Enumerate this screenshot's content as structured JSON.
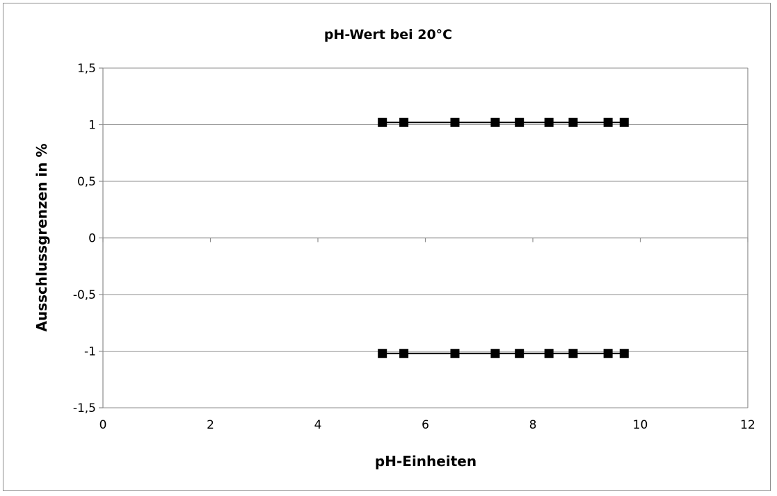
{
  "chart_data": {
    "type": "line",
    "title": "pH-Wert bei 20°C",
    "xlabel": "pH-Einheiten",
    "ylabel": "Ausschlussgrenzen in %",
    "xlim": [
      0,
      12
    ],
    "ylim": [
      -1.5,
      1.5
    ],
    "x_ticks": [
      0,
      2,
      4,
      6,
      8,
      10,
      12
    ],
    "y_ticks": [
      1.5,
      1,
      0.5,
      0,
      -0.5,
      -1,
      -1.5
    ],
    "x_tick_labels": [
      "0",
      "2",
      "4",
      "6",
      "8",
      "10",
      "12"
    ],
    "y_tick_labels": [
      "1,5",
      "1",
      "0,5",
      "0",
      "-0,5",
      "-1",
      "-1,5"
    ],
    "grid": "horizontal",
    "legend": "none",
    "series": [
      {
        "marker": "square",
        "color": "#000000",
        "x": [
          5.2,
          5.6,
          6.55,
          7.3,
          7.75,
          8.3,
          8.75,
          9.4,
          9.7
        ],
        "y": [
          1.02,
          1.02,
          1.02,
          1.02,
          1.02,
          1.02,
          1.02,
          1.02,
          1.02
        ]
      },
      {
        "marker": "square",
        "color": "#000000",
        "x": [
          5.2,
          5.6,
          6.55,
          7.3,
          7.75,
          8.3,
          8.75,
          9.4,
          9.7
        ],
        "y": [
          -1.02,
          -1.02,
          -1.02,
          -1.02,
          -1.02,
          -1.02,
          -1.02,
          -1.02,
          -1.02
        ]
      }
    ]
  }
}
